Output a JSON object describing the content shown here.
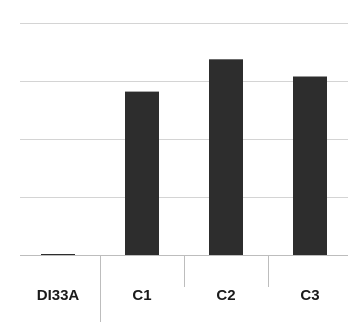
{
  "chart_data": {
    "type": "bar",
    "categories": [
      "DI33A",
      "C1",
      "C2",
      "C3"
    ],
    "values": [
      0.1,
      16.2,
      19.4,
      17.7
    ],
    "ylim": [
      0,
      23
    ],
    "gridlines": [
      0,
      5.75,
      11.5,
      17.25,
      23
    ],
    "grid": true,
    "legend": "none",
    "bar_color": "#2d2d2d",
    "title": "",
    "xlabel": "",
    "ylabel": ""
  }
}
